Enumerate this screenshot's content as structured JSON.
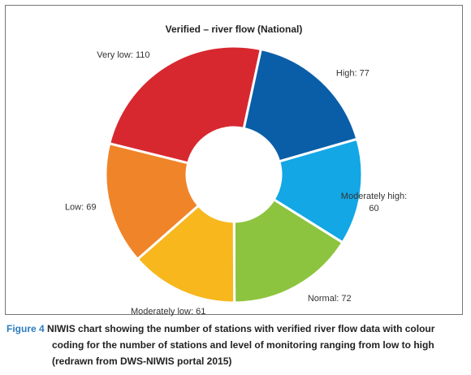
{
  "chart_data": {
    "type": "pie",
    "title": "Verified – river flow (National)",
    "donut": true,
    "categories": [
      "Very low",
      "High",
      "Moderately high",
      "Normal",
      "Moderately low",
      "Low"
    ],
    "values": [
      110,
      77,
      60,
      72,
      61,
      69
    ],
    "labels": [
      "Very low: 110",
      "High: 77",
      "Moderately high:",
      "Normal: 72",
      "Moderately low: 61",
      "Low: 69"
    ],
    "labels_line2": [
      "",
      "",
      "60",
      "",
      "",
      ""
    ],
    "colors": [
      "#d7282f",
      "#0a5ea8",
      "#13a7e6",
      "#8cc43f",
      "#f7b71d",
      "#f08429"
    ]
  },
  "caption": {
    "figure_label": "Figure 4",
    "line1": "NIWIS chart showing the number of stations with verified river flow data with colour",
    "line2": "coding for the number of stations and level of monitoring ranging from low to high",
    "line3": "(redrawn from DWS-NIWIS portal 2015)"
  }
}
